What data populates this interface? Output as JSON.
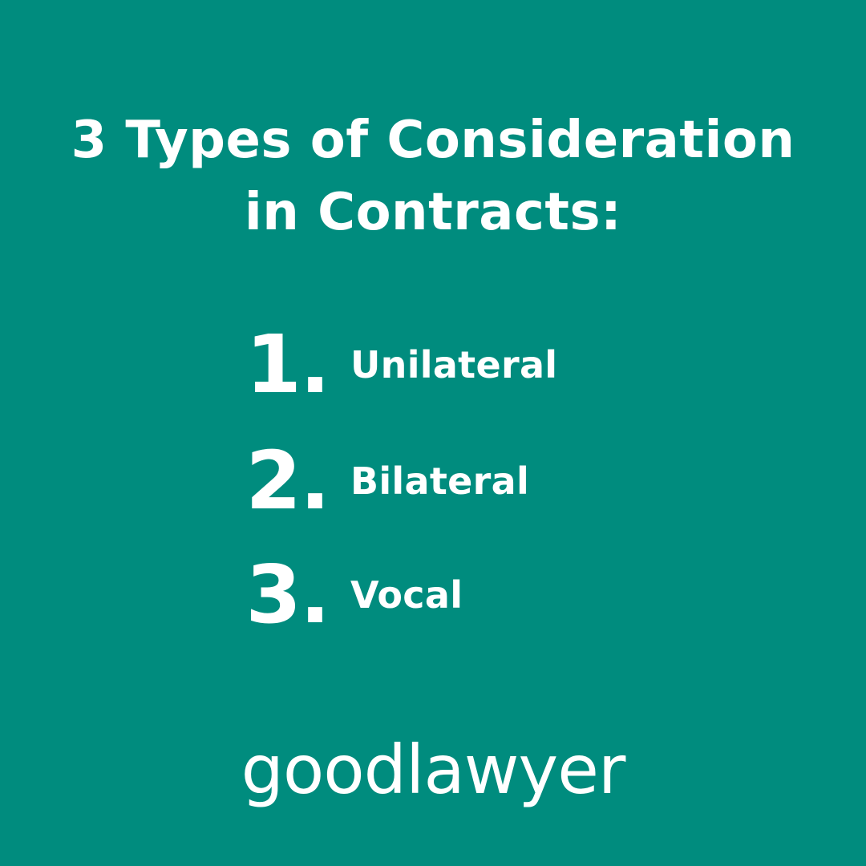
{
  "page": {
    "background_color": "#008c7e",
    "text_color": "#ffffff"
  },
  "title": {
    "line1": "3 Types of Consideration",
    "line2": "in Contracts:"
  },
  "list": {
    "items": [
      {
        "number": "1.",
        "label": "Unilateral"
      },
      {
        "number": "2.",
        "label": "Bilateral"
      },
      {
        "number": "3.",
        "label": "Vocal"
      }
    ]
  },
  "brand": {
    "logo_text": "goodlawyer"
  }
}
